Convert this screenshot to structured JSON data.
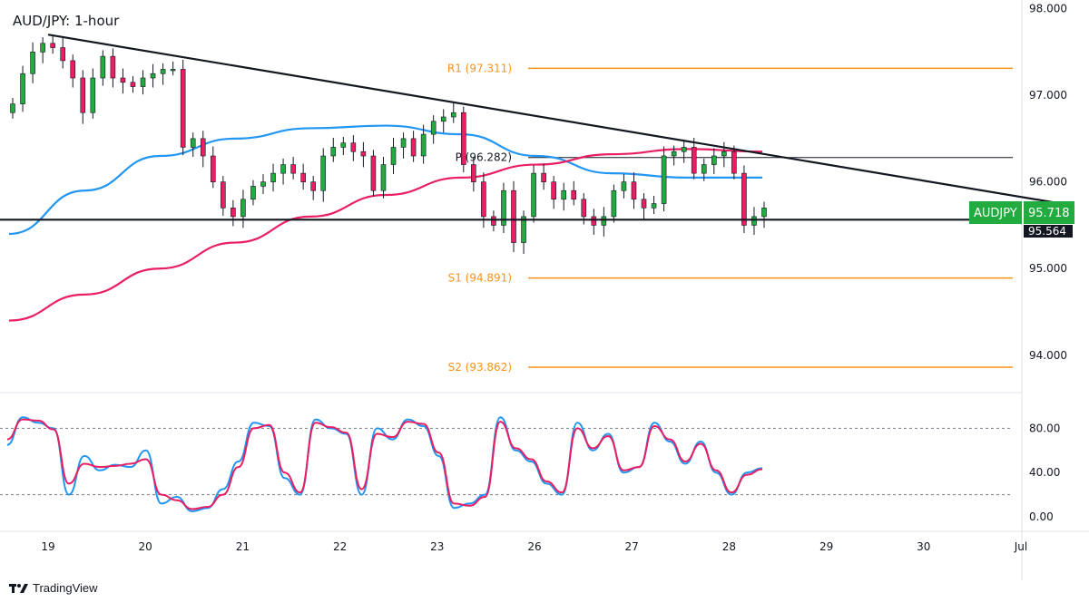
{
  "chart_data": {
    "type": "candlestick",
    "title": "AUD/JPY: 1-hour",
    "symbol_tag": "AUDJPY",
    "last_price": "95.718",
    "price_axis_label_partial": "95.564",
    "price_ticks": [
      "98.000",
      "97.000",
      "96.000",
      "95.000",
      "94.000"
    ],
    "price_tick_values": [
      98,
      97,
      96,
      95,
      94
    ],
    "ylim": [
      93.6,
      98.1
    ],
    "x_ticks": [
      "19",
      "20",
      "21",
      "22",
      "23",
      "26",
      "27",
      "28",
      "29",
      "30",
      "Jul"
    ],
    "pivots": [
      {
        "label": "R1 (97.311)",
        "value": 97.311
      },
      {
        "label": "P (96.282)",
        "value": 96.282
      },
      {
        "label": "S1 (94.891)",
        "value": 94.891
      },
      {
        "label": "S2 (93.862)",
        "value": 93.862
      }
    ],
    "support_level": 95.564,
    "trendline": {
      "start": [
        0.2,
        97.7
      ],
      "end": [
        10.6,
        95.75
      ]
    },
    "close_series": [
      96.9,
      97.25,
      97.5,
      97.6,
      97.55,
      97.4,
      97.2,
      96.8,
      97.2,
      97.45,
      97.2,
      97.15,
      97.1,
      97.2,
      97.25,
      97.3,
      97.3,
      96.4,
      96.5,
      96.3,
      96.0,
      95.7,
      95.6,
      95.8,
      95.95,
      96.0,
      96.1,
      96.2,
      96.1,
      96.0,
      95.9,
      96.3,
      96.4,
      96.45,
      96.35,
      96.3,
      95.9,
      96.2,
      96.4,
      96.5,
      96.3,
      96.55,
      96.7,
      96.75,
      96.8,
      96.2,
      96.0,
      95.6,
      95.5,
      95.9,
      95.3,
      95.6,
      96.1,
      96.0,
      95.8,
      95.9,
      95.8,
      95.6,
      95.5,
      95.6,
      95.9,
      96.0,
      95.8,
      95.7,
      95.75,
      96.3,
      96.35,
      96.4,
      96.1,
      96.2,
      96.3,
      96.35,
      96.1,
      95.5,
      95.6,
      95.7
    ],
    "moving_averages": [
      {
        "color": "#2196f3",
        "values": [
          95.4,
          95.9,
          96.3,
          96.5,
          96.62,
          96.65,
          96.55,
          96.3,
          96.1,
          96.05,
          96.05
        ]
      },
      {
        "color": "#e91e63",
        "values": [
          94.4,
          94.7,
          95.0,
          95.3,
          95.6,
          95.85,
          96.05,
          96.2,
          96.32,
          96.38,
          96.35
        ]
      }
    ],
    "stochastic": {
      "ticks": [
        "80.00",
        "40.00",
        "0.00"
      ],
      "tick_values": [
        80,
        40,
        0
      ],
      "dashed_levels": [
        80,
        20
      ],
      "k": [
        65,
        90,
        85,
        80,
        20,
        55,
        42,
        47,
        45,
        60,
        12,
        18,
        5,
        8,
        25,
        50,
        85,
        82,
        35,
        20,
        88,
        80,
        75,
        20,
        80,
        70,
        88,
        82,
        55,
        8,
        12,
        20,
        90,
        60,
        50,
        30,
        20,
        85,
        60,
        75,
        40,
        45,
        85,
        68,
        48,
        68,
        40,
        20,
        40,
        44
      ],
      "d": [
        70,
        88,
        87,
        79,
        30,
        48,
        45,
        46,
        48,
        52,
        20,
        15,
        7,
        9,
        20,
        45,
        80,
        83,
        40,
        22,
        85,
        81,
        76,
        25,
        75,
        72,
        86,
        84,
        58,
        12,
        10,
        18,
        86,
        62,
        52,
        32,
        22,
        80,
        62,
        73,
        42,
        45,
        82,
        70,
        50,
        66,
        42,
        22,
        38,
        43
      ]
    }
  },
  "branding": {
    "name": "TradingView",
    "logo": "tradingview-logo-icon"
  }
}
